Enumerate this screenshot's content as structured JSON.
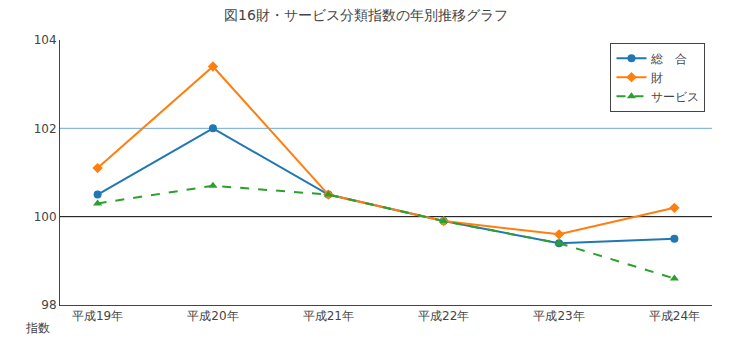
{
  "chart_data": {
    "type": "line",
    "title": "図16財・サービス分類指数の年別推移グラフ",
    "xlabel": "指数",
    "categories": [
      "平成19年",
      "平成20年",
      "平成21年",
      "平成22年",
      "平成23年",
      "平成24年"
    ],
    "series": [
      {
        "name": "総　合",
        "values": [
          100.5,
          102.0,
          100.5,
          99.9,
          99.4,
          99.5
        ],
        "marker": "circle",
        "line_style": "solid"
      },
      {
        "name": "財",
        "values": [
          101.1,
          103.4,
          100.5,
          99.9,
          99.6,
          100.2
        ],
        "marker": "diamond",
        "line_style": "solid"
      },
      {
        "name": "サービス",
        "values": [
          100.3,
          100.7,
          100.5,
          99.9,
          99.4,
          98.6
        ],
        "marker": "triangle-up",
        "line_style": "dash"
      }
    ],
    "hlines": [
      {
        "value": 102,
        "color": "#6fa8dc"
      },
      {
        "value": 100,
        "color": "#000000"
      }
    ],
    "ylim": [
      98,
      104
    ],
    "yticks": [
      98,
      100,
      102,
      104
    ],
    "grid": false,
    "legend": "upper right"
  }
}
